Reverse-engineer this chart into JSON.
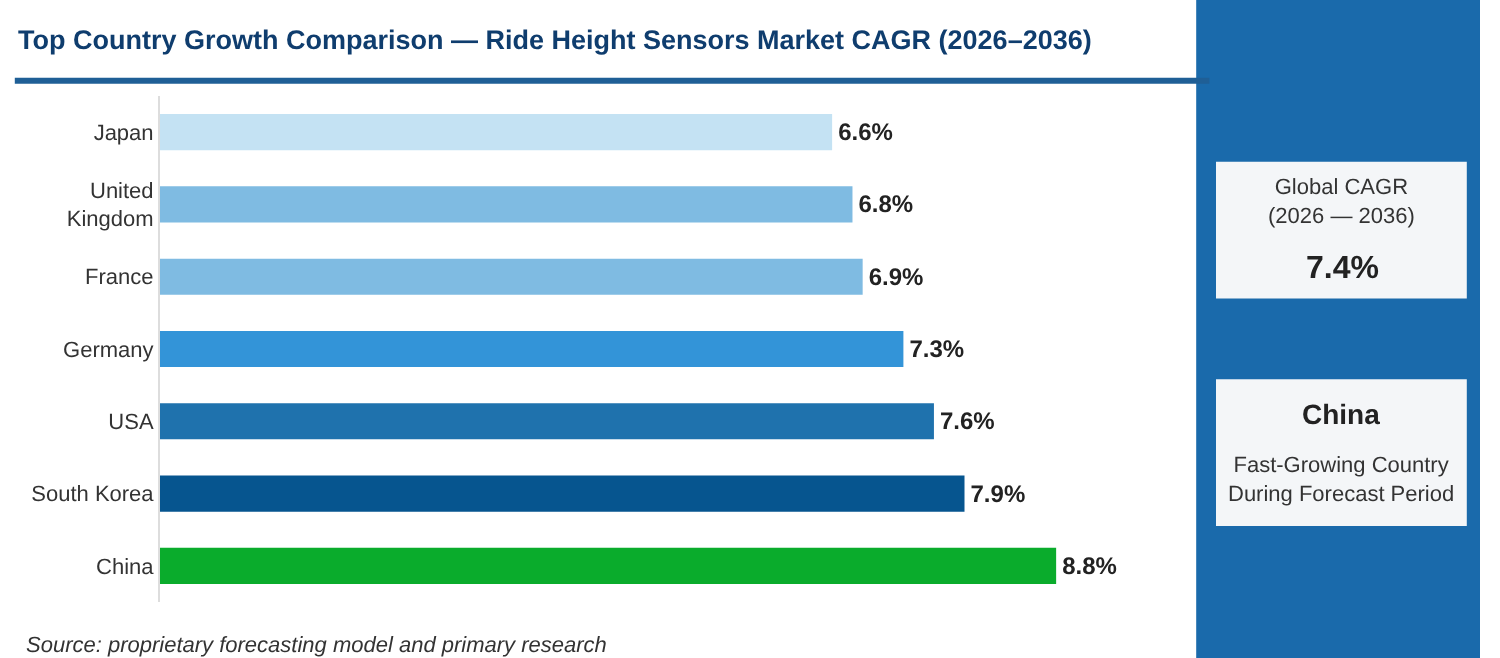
{
  "chart_data": {
    "type": "bar",
    "orientation": "horizontal",
    "title": "Top Country Growth Comparison — Ride Height Sensors Market CAGR (2026–2036)",
    "categories": [
      "Japan",
      "United Kingdom",
      "France",
      "Germany",
      "USA",
      "South Korea",
      "China"
    ],
    "values": [
      6.6,
      6.8,
      6.9,
      7.3,
      7.6,
      7.9,
      8.8
    ],
    "value_labels": [
      "6.6%",
      "6.8%",
      "6.9%",
      "7.3%",
      "7.6%",
      "7.9%",
      "8.8%"
    ],
    "colors": [
      "#c4e2f3",
      "#7fbbe2",
      "#7fbbe2",
      "#3394d8",
      "#1f72ad",
      "#06558f",
      "#0aac2c"
    ],
    "annotations": [
      "Source: proprietary forecasting model and primary research",
      "Global CAGR\n(2026 — 2036)",
      "7.4%",
      "China",
      "Fast-Growing Country\nDuring Forecast Period"
    ]
  }
}
